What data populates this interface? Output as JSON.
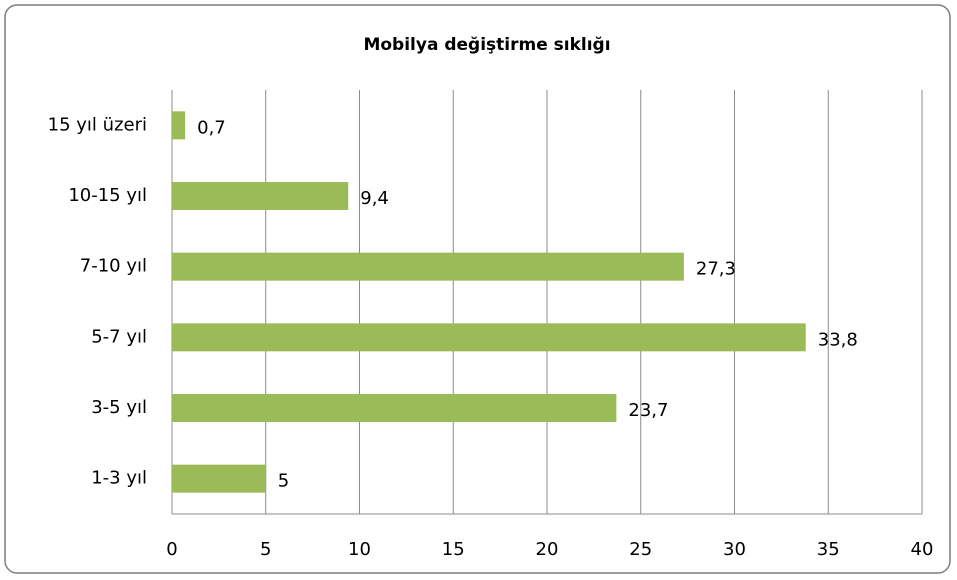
{
  "chart_data": {
    "type": "bar",
    "title": "Mobilya değiştirme sıklığı",
    "categories": [
      "15 yıl üzeri",
      "10-15 yıl",
      "7-10 yıl",
      "5-7 yıl",
      "3-5 yıl",
      "1-3 yıl"
    ],
    "values": [
      0.7,
      9.4,
      27.3,
      33.8,
      23.7,
      5
    ],
    "value_labels": [
      "0,7",
      "9,4",
      "27,3",
      "33,8",
      "23,7",
      "5"
    ],
    "color": "#9bbb59",
    "xlim": [
      0,
      40
    ],
    "xticks": [
      0,
      5,
      10,
      15,
      20,
      25,
      30,
      35,
      40
    ],
    "grid": true
  }
}
